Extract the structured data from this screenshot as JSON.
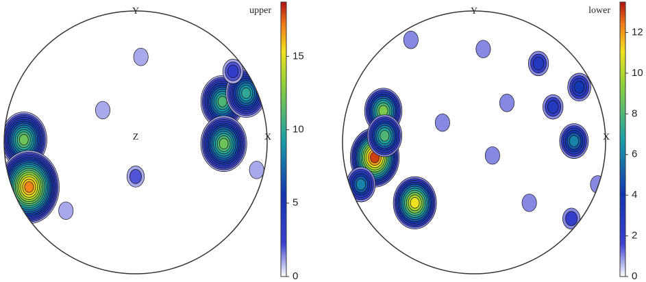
{
  "chart_data": [
    {
      "type": "pole-figure",
      "title": "upper",
      "north_label": "Y",
      "east_label": "X",
      "center_label": "Z",
      "x": [
        -0.85,
        -0.81,
        0.66,
        0.84,
        0.67,
        0.74,
        0.0,
        -0.25,
        0.04,
        -0.53,
        0.92
      ],
      "y": [
        0.02,
        -0.34,
        0.31,
        0.375,
        -0.01,
        0.54,
        -0.26,
        0.245,
        0.65,
        -0.52,
        -0.21
      ],
      "values": [
        12,
        17,
        11,
        10,
        12,
        3,
        2,
        1,
        1,
        1,
        1
      ],
      "ylim": [
        0,
        18.7
      ],
      "yticks": [
        0,
        5,
        10,
        15
      ]
    },
    {
      "type": "pole-figure",
      "title": "lower",
      "north_label": "Y",
      "east_label": "X",
      "x": [
        -0.755,
        -0.69,
        -0.68,
        -0.86,
        -0.45,
        0.76,
        0.8,
        0.49,
        0.6,
        0.25,
        0.14,
        -0.24,
        0.07,
        -0.48,
        0.42,
        0.74,
        0.94
      ],
      "y": [
        -0.115,
        0.24,
        0.05,
        -0.32,
        -0.46,
        0.01,
        0.42,
        0.6,
        0.27,
        0.3,
        -0.1,
        0.15,
        0.71,
        0.78,
        -0.46,
        -0.58,
        -0.32
      ],
      "values": [
        13,
        9,
        8,
        6,
        11,
        6,
        4,
        3,
        3,
        1,
        1,
        1,
        1,
        1,
        1,
        2,
        1
      ],
      "ylim": [
        0,
        13.5
      ],
      "yticks": [
        0,
        2,
        4,
        6,
        8,
        10,
        12
      ]
    }
  ]
}
